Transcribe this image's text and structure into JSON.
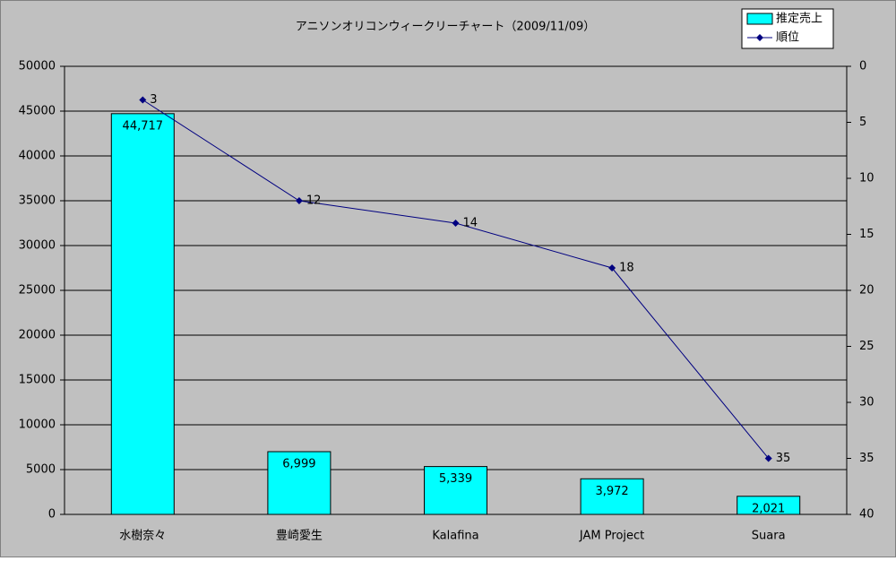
{
  "chart_data": {
    "type": "combo",
    "title": "アニソンオリコンウィークリーチャート（2009/11/09）",
    "categories": [
      "水樹奈々",
      "豊崎愛生",
      "Kalafina",
      "JAM Project",
      "Suara"
    ],
    "series": [
      {
        "name": "推定売上",
        "type": "bar",
        "color": "#00ffff",
        "values": [
          44717,
          6999,
          5339,
          3972,
          2021
        ],
        "value_labels": [
          "44,717",
          "6,999",
          "5,339",
          "3,972",
          "2,021"
        ]
      },
      {
        "name": "順位",
        "type": "line",
        "color": "#000080",
        "axis": "y2",
        "values": [
          3,
          12,
          14,
          18,
          35
        ]
      }
    ],
    "ylim": [
      0,
      50000
    ],
    "yticks": [
      0,
      5000,
      10000,
      15000,
      20000,
      25000,
      30000,
      35000,
      40000,
      45000,
      50000
    ],
    "y2lim": [
      40,
      0
    ],
    "y2ticks": [
      0,
      5,
      10,
      15,
      20,
      25,
      30,
      35,
      40
    ],
    "grid": true,
    "legend": "top-right",
    "background": "#c0c0c0"
  }
}
